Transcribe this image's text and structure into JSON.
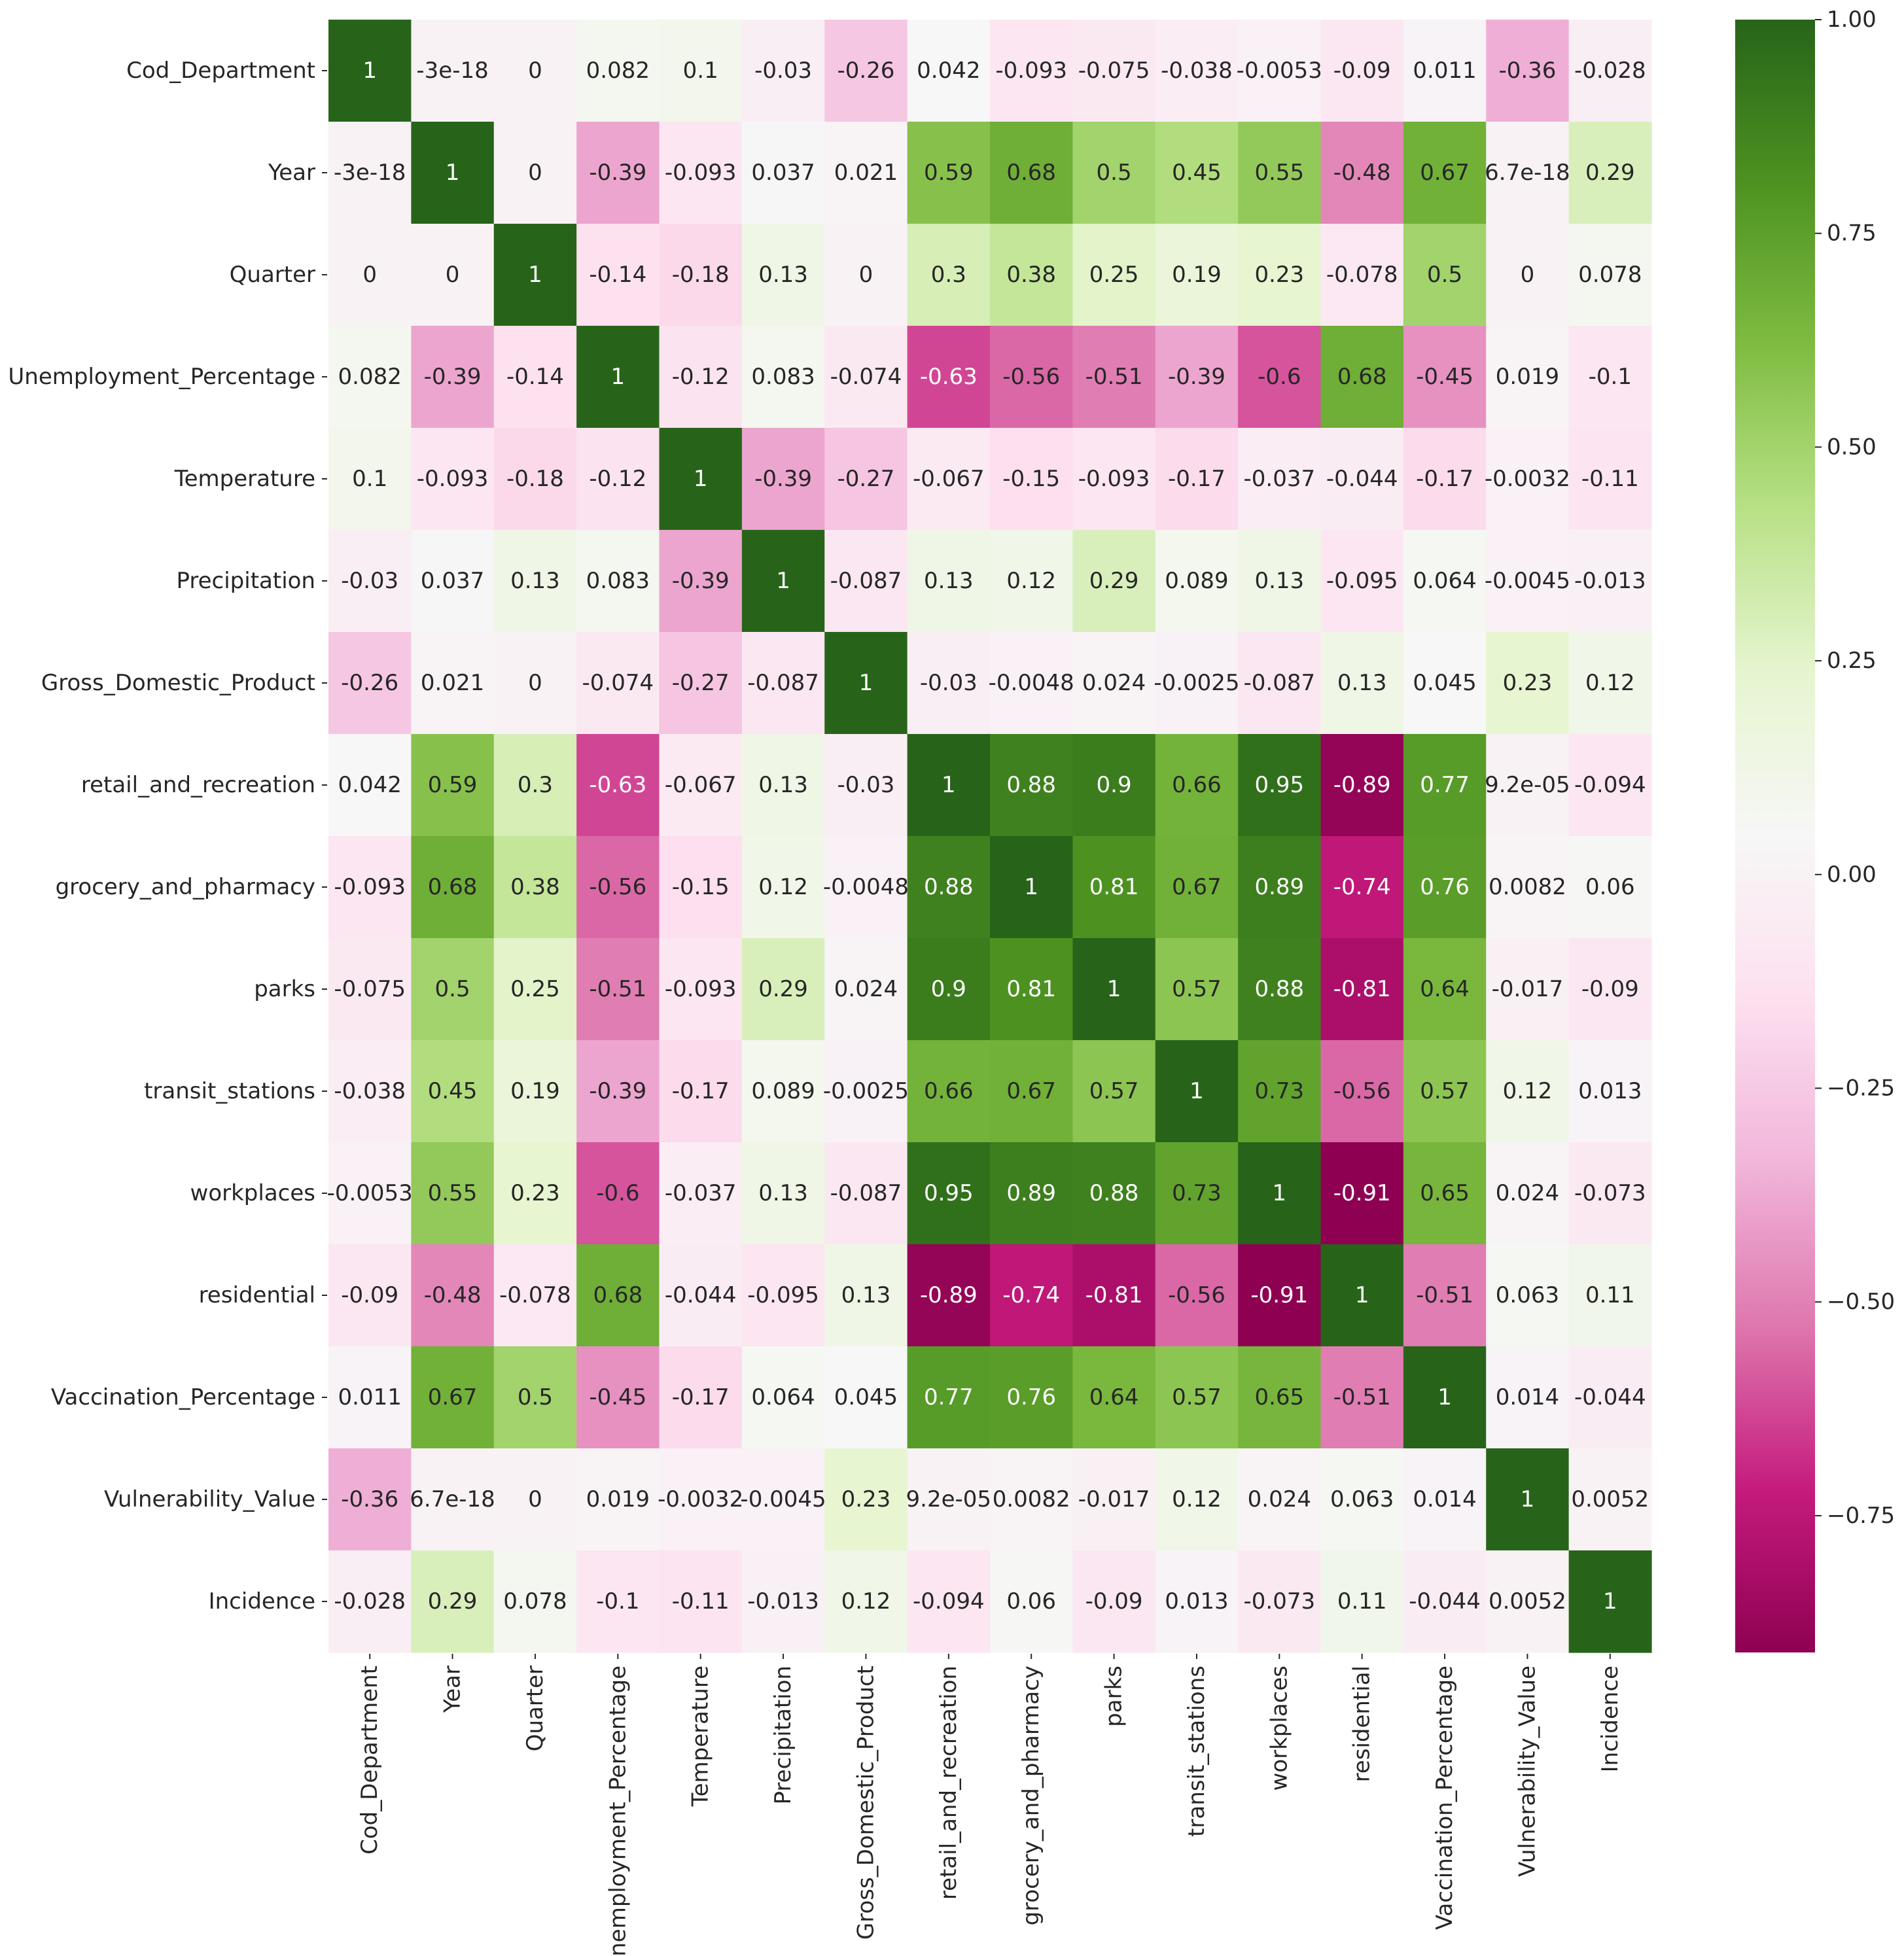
{
  "chart_data": {
    "type": "heatmap",
    "title": "",
    "variables": [
      "Cod_Department",
      "Year",
      "Quarter",
      "Unemployment_Percentage",
      "Temperature",
      "Precipitation",
      "Gross_Domestic_Product",
      "retail_and_recreation",
      "grocery_and_pharmacy",
      "parks",
      "transit_stations",
      "workplaces",
      "residential",
      "Vaccination_Percentage",
      "Vulnerability_Value",
      "Incidence"
    ],
    "values": [
      [
        1,
        -3e-18,
        0,
        0.082,
        0.1,
        -0.03,
        -0.26,
        0.042,
        -0.093,
        -0.075,
        -0.038,
        -0.0053,
        -0.09,
        0.011,
        -0.36,
        -0.028
      ],
      [
        -3e-18,
        1,
        0,
        -0.39,
        -0.093,
        0.037,
        0.021,
        0.59,
        0.68,
        0.5,
        0.45,
        0.55,
        -0.48,
        0.67,
        6.7e-18,
        0.29
      ],
      [
        0,
        0,
        1,
        -0.14,
        -0.18,
        0.13,
        0,
        0.3,
        0.38,
        0.25,
        0.19,
        0.23,
        -0.078,
        0.5,
        0,
        0.078
      ],
      [
        0.082,
        -0.39,
        -0.14,
        1,
        -0.12,
        0.083,
        -0.074,
        -0.63,
        -0.56,
        -0.51,
        -0.39,
        -0.6,
        0.68,
        -0.45,
        0.019,
        -0.1
      ],
      [
        0.1,
        -0.093,
        -0.18,
        -0.12,
        1,
        -0.39,
        -0.27,
        -0.067,
        -0.15,
        -0.093,
        -0.17,
        -0.037,
        -0.044,
        -0.17,
        -0.0032,
        -0.11
      ],
      [
        -0.03,
        0.037,
        0.13,
        0.083,
        -0.39,
        1,
        -0.087,
        0.13,
        0.12,
        0.29,
        0.089,
        0.13,
        -0.095,
        0.064,
        -0.0045,
        -0.013
      ],
      [
        -0.26,
        0.021,
        0,
        -0.074,
        -0.27,
        -0.087,
        1,
        -0.03,
        -0.0048,
        0.024,
        -0.0025,
        -0.087,
        0.13,
        0.045,
        0.23,
        0.12
      ],
      [
        0.042,
        0.59,
        0.3,
        -0.63,
        -0.067,
        0.13,
        -0.03,
        1,
        0.88,
        0.9,
        0.66,
        0.95,
        -0.89,
        0.77,
        9.2e-05,
        -0.094
      ],
      [
        -0.093,
        0.68,
        0.38,
        -0.56,
        -0.15,
        0.12,
        -0.0048,
        0.88,
        1,
        0.81,
        0.67,
        0.89,
        -0.74,
        0.76,
        0.0082,
        0.06
      ],
      [
        -0.075,
        0.5,
        0.25,
        -0.51,
        -0.093,
        0.29,
        0.024,
        0.9,
        0.81,
        1,
        0.57,
        0.88,
        -0.81,
        0.64,
        -0.017,
        -0.09
      ],
      [
        -0.038,
        0.45,
        0.19,
        -0.39,
        -0.17,
        0.089,
        -0.0025,
        0.66,
        0.67,
        0.57,
        1,
        0.73,
        -0.56,
        0.57,
        0.12,
        0.013
      ],
      [
        -0.0053,
        0.55,
        0.23,
        -0.6,
        -0.037,
        0.13,
        -0.087,
        0.95,
        0.89,
        0.88,
        0.73,
        1,
        -0.91,
        0.65,
        0.024,
        -0.073
      ],
      [
        -0.09,
        -0.48,
        -0.078,
        0.68,
        -0.044,
        -0.095,
        0.13,
        -0.89,
        -0.74,
        -0.81,
        -0.56,
        -0.91,
        1,
        -0.51,
        0.063,
        0.11
      ],
      [
        0.011,
        0.67,
        0.5,
        -0.45,
        -0.17,
        0.064,
        0.045,
        0.77,
        0.76,
        0.64,
        0.57,
        0.65,
        -0.51,
        1,
        0.014,
        -0.044
      ],
      [
        -0.36,
        6.7e-18,
        0,
        0.019,
        -0.0032,
        -0.0045,
        0.23,
        9.2e-05,
        0.0082,
        -0.017,
        0.12,
        0.024,
        0.063,
        0.014,
        1,
        0.0052
      ],
      [
        -0.028,
        0.29,
        0.078,
        -0.1,
        -0.11,
        -0.013,
        0.12,
        -0.094,
        0.06,
        -0.09,
        0.013,
        -0.073,
        0.11,
        -0.044,
        0.0052,
        1
      ]
    ],
    "labels": [
      [
        "1",
        "-3e-18",
        "0",
        "0.082",
        "0.1",
        "-0.03",
        "-0.26",
        "0.042",
        "-0.093",
        "-0.075",
        "-0.038",
        "-0.0053",
        "-0.09",
        "0.011",
        "-0.36",
        "-0.028"
      ],
      [
        "-3e-18",
        "1",
        "0",
        "-0.39",
        "-0.093",
        "0.037",
        "0.021",
        "0.59",
        "0.68",
        "0.5",
        "0.45",
        "0.55",
        "-0.48",
        "0.67",
        "6.7e-18",
        "0.29"
      ],
      [
        "0",
        "0",
        "1",
        "-0.14",
        "-0.18",
        "0.13",
        "0",
        "0.3",
        "0.38",
        "0.25",
        "0.19",
        "0.23",
        "-0.078",
        "0.5",
        "0",
        "0.078"
      ],
      [
        "0.082",
        "-0.39",
        "-0.14",
        "1",
        "-0.12",
        "0.083",
        "-0.074",
        "-0.63",
        "-0.56",
        "-0.51",
        "-0.39",
        "-0.6",
        "0.68",
        "-0.45",
        "0.019",
        "-0.1"
      ],
      [
        "0.1",
        "-0.093",
        "-0.18",
        "-0.12",
        "1",
        "-0.39",
        "-0.27",
        "-0.067",
        "-0.15",
        "-0.093",
        "-0.17",
        "-0.037",
        "-0.044",
        "-0.17",
        "-0.0032",
        "-0.11"
      ],
      [
        "-0.03",
        "0.037",
        "0.13",
        "0.083",
        "-0.39",
        "1",
        "-0.087",
        "0.13",
        "0.12",
        "0.29",
        "0.089",
        "0.13",
        "-0.095",
        "0.064",
        "-0.0045",
        "-0.013"
      ],
      [
        "-0.26",
        "0.021",
        "0",
        "-0.074",
        "-0.27",
        "-0.087",
        "1",
        "-0.03",
        "-0.0048",
        "0.024",
        "-0.0025",
        "-0.087",
        "0.13",
        "0.045",
        "0.23",
        "0.12"
      ],
      [
        "0.042",
        "0.59",
        "0.3",
        "-0.63",
        "-0.067",
        "0.13",
        "-0.03",
        "1",
        "0.88",
        "0.9",
        "0.66",
        "0.95",
        "-0.89",
        "0.77",
        "9.2e-05",
        "-0.094"
      ],
      [
        "-0.093",
        "0.68",
        "0.38",
        "-0.56",
        "-0.15",
        "0.12",
        "-0.0048",
        "0.88",
        "1",
        "0.81",
        "0.67",
        "0.89",
        "-0.74",
        "0.76",
        "0.0082",
        "0.06"
      ],
      [
        "-0.075",
        "0.5",
        "0.25",
        "-0.51",
        "-0.093",
        "0.29",
        "0.024",
        "0.9",
        "0.81",
        "1",
        "0.57",
        "0.88",
        "-0.81",
        "0.64",
        "-0.017",
        "-0.09"
      ],
      [
        "-0.038",
        "0.45",
        "0.19",
        "-0.39",
        "-0.17",
        "0.089",
        "-0.0025",
        "0.66",
        "0.67",
        "0.57",
        "1",
        "0.73",
        "-0.56",
        "0.57",
        "0.12",
        "0.013"
      ],
      [
        "-0.0053",
        "0.55",
        "0.23",
        "-0.6",
        "-0.037",
        "0.13",
        "-0.087",
        "0.95",
        "0.89",
        "0.88",
        "0.73",
        "1",
        "-0.91",
        "0.65",
        "0.024",
        "-0.073"
      ],
      [
        "-0.09",
        "-0.48",
        "-0.078",
        "0.68",
        "-0.044",
        "-0.095",
        "0.13",
        "-0.89",
        "-0.74",
        "-0.81",
        "-0.56",
        "-0.91",
        "1",
        "-0.51",
        "0.063",
        "0.11"
      ],
      [
        "0.011",
        "0.67",
        "0.5",
        "-0.45",
        "-0.17",
        "0.064",
        "0.045",
        "0.77",
        "0.76",
        "0.64",
        "0.57",
        "0.65",
        "-0.51",
        "1",
        "0.014",
        "-0.044"
      ],
      [
        "-0.36",
        "6.7e-18",
        "0",
        "0.019",
        "-0.0032",
        "-0.0045",
        "0.23",
        "9.2e-05",
        "0.0082",
        "-0.017",
        "0.12",
        "0.024",
        "0.063",
        "0.014",
        "1",
        "0.0052"
      ],
      [
        "-0.028",
        "0.29",
        "0.078",
        "-0.1",
        "-0.11",
        "-0.013",
        "0.12",
        "-0.094",
        "0.06",
        "-0.09",
        "0.013",
        "-0.073",
        "0.11",
        "-0.044",
        "0.0052",
        "1"
      ]
    ],
    "colormap": "PiYG",
    "colorbar": {
      "vmin": -0.91,
      "vmax": 1.0,
      "ticks": [
        1.0,
        0.75,
        0.5,
        0.25,
        0.0,
        -0.25,
        -0.5,
        -0.75
      ],
      "tick_labels": [
        "1.00",
        "0.75",
        "0.50",
        "0.25",
        "0.00",
        "−0.25",
        "−0.50",
        "−0.75"
      ]
    },
    "colors": {
      "negative_dark": "#8e0152",
      "negative_mid": "#de77ae",
      "neutral": "#f7f7f7",
      "positive_mid": "#7fbc41",
      "positive_dark": "#276419"
    },
    "xlabel": "",
    "ylabel": ""
  }
}
